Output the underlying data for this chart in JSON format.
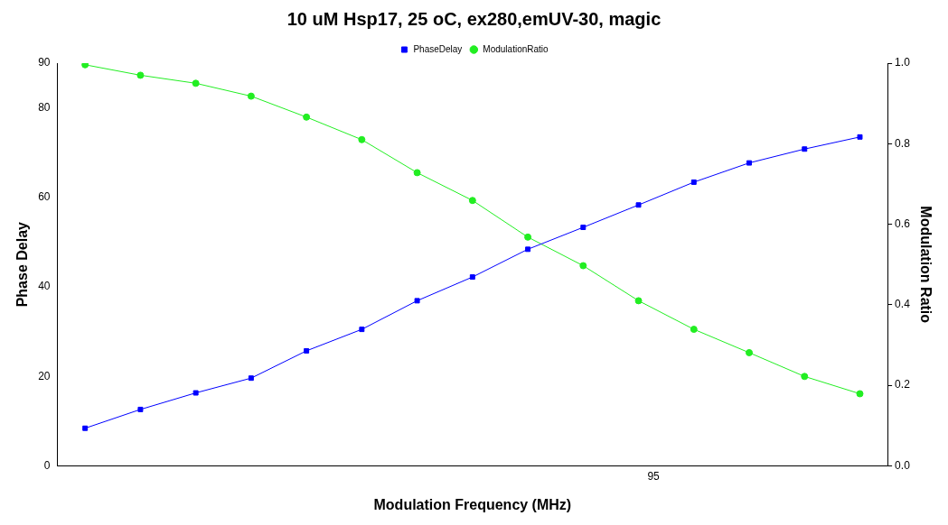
{
  "chart_data": {
    "type": "line",
    "title": "10 uM Hsp17, 25 oC, ex280,emUV-30, magic",
    "xlabel": "Modulation Frequency (MHz)",
    "ylabel": "Phase Delay",
    "y2label": "Modulation Ratio",
    "categories": [
      null,
      null,
      null,
      null,
      null,
      null,
      null,
      null,
      null,
      null,
      null,
      null,
      null,
      null,
      null
    ],
    "series": [
      {
        "name": "PhaseDelay",
        "color": "#0000ff",
        "marker": "square",
        "values": [
          8.4,
          12.6,
          16.3,
          19.6,
          25.7,
          30.5,
          36.9,
          42.2,
          48.4,
          53.3,
          58.3,
          63.4,
          67.7,
          70.8,
          73.5
        ]
      },
      {
        "name": "ModulationRatio",
        "color": "#22ee22",
        "marker": "circle",
        "axis": "y2",
        "values": [
          0.996,
          0.97,
          0.95,
          0.918,
          0.866,
          0.81,
          0.728,
          0.659,
          0.568,
          0.497,
          0.41,
          0.339,
          0.281,
          0.222,
          0.179
        ]
      }
    ],
    "ylim": [
      0,
      90
    ],
    "yticks": [
      0,
      20,
      40,
      60,
      80,
      90
    ],
    "y2lim": [
      0,
      1
    ],
    "y2ticks": [
      {
        "value": 0,
        "label": "0.0"
      },
      {
        "value": 0.2,
        "label": "0.2"
      },
      {
        "value": 0.4,
        "label": "0.4"
      },
      {
        "value": 0.6,
        "label": "0.6"
      },
      {
        "value": 0.8,
        "label": "0.8"
      },
      {
        "value": 1,
        "label": "1.0"
      }
    ],
    "annotations": [
      "95"
    ],
    "legend": "top",
    "grid": false
  }
}
